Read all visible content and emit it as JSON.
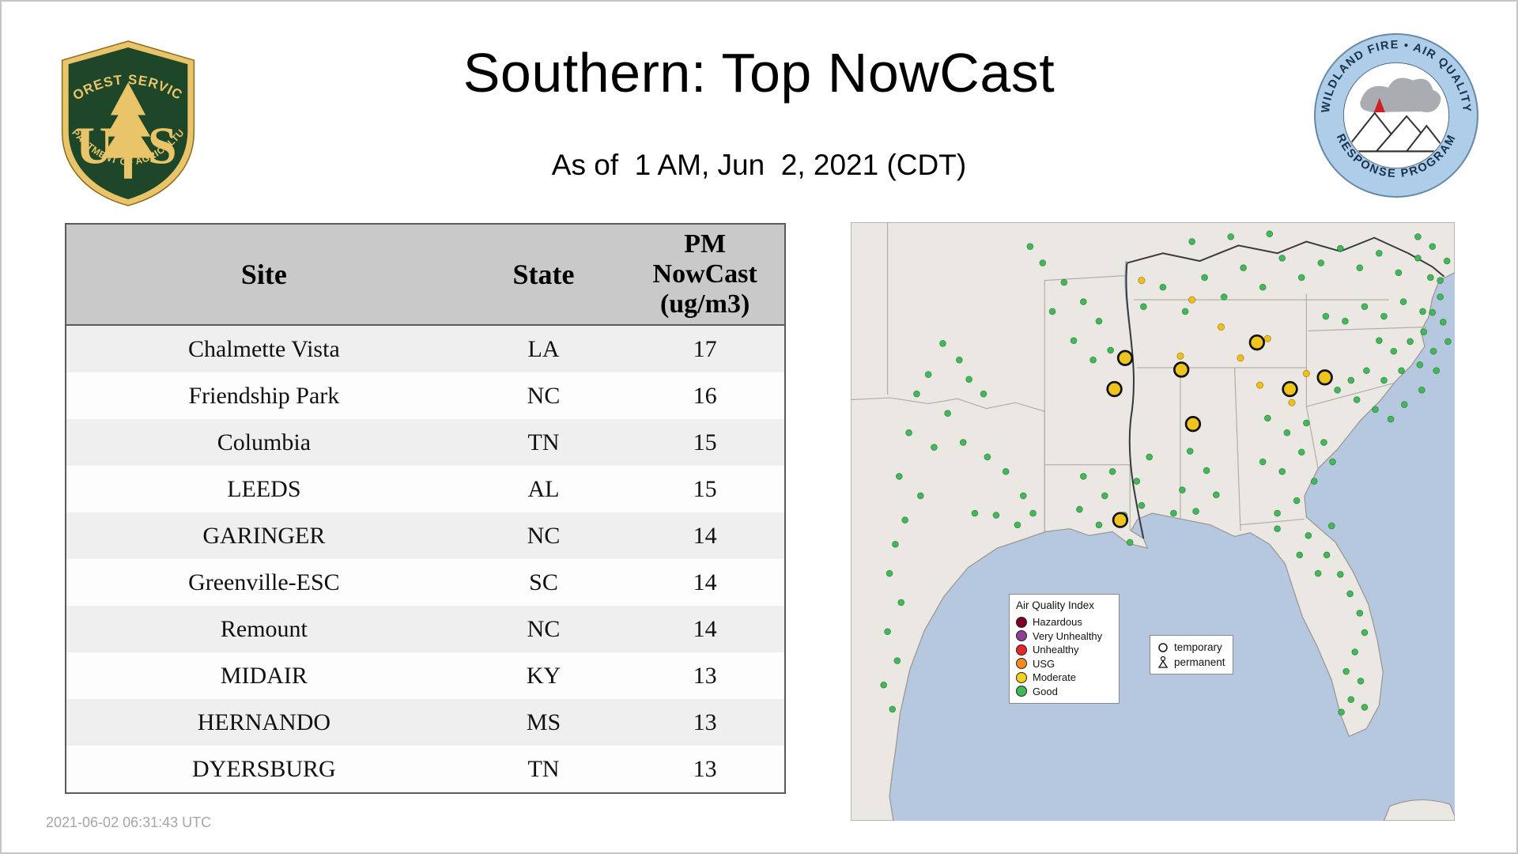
{
  "page": {
    "title": "Southern: Top NowCast",
    "subtitle": "As of  1 AM, Jun  2, 2021 (CDT)",
    "timestamp_utc": "2021-06-02 06:31:43 UTC"
  },
  "logos": {
    "forest_service": {
      "arc_top": "FOREST SERVICE",
      "monogram_left": "U",
      "monogram_right": "S",
      "arc_bottom": "DEPARTMENT OF AGRICULTURE"
    },
    "air_quality_program": {
      "arc_top": "WILDLAND FIRE • AIR QUALITY",
      "arc_bottom": "RESPONSE PROGRAM"
    }
  },
  "table": {
    "header": {
      "site": "Site",
      "state": "State",
      "pm": "PM\nNowCast\n(ug/m3)"
    },
    "rows": [
      {
        "site": "Chalmette Vista",
        "state": "LA",
        "value": "17"
      },
      {
        "site": "Friendship Park",
        "state": "NC",
        "value": "16"
      },
      {
        "site": "Columbia",
        "state": "TN",
        "value": "15"
      },
      {
        "site": "LEEDS",
        "state": "AL",
        "value": "15"
      },
      {
        "site": "GARINGER",
        "state": "NC",
        "value": "14"
      },
      {
        "site": "Greenville-ESC",
        "state": "SC",
        "value": "14"
      },
      {
        "site": "Remount",
        "state": "NC",
        "value": "14"
      },
      {
        "site": "MIDAIR",
        "state": "KY",
        "value": "13"
      },
      {
        "site": "HERNANDO",
        "state": "MS",
        "value": "13"
      },
      {
        "site": "DYERSBURG",
        "state": "TN",
        "value": "13"
      }
    ]
  },
  "map": {
    "legend": {
      "title": "Air Quality Index",
      "items": [
        {
          "label": "Hazardous",
          "color": "#7e0023"
        },
        {
          "label": "Very Unhealthy",
          "color": "#8f3f97"
        },
        {
          "label": "Unhealthy",
          "color": "#e4272c"
        },
        {
          "label": "USG",
          "color": "#f68a1f"
        },
        {
          "label": "Moderate",
          "color": "#f2d21f"
        },
        {
          "label": "Good",
          "color": "#42b958"
        }
      ]
    },
    "marker_legend": {
      "temporary": "temporary",
      "permanent": "permanent"
    },
    "colors": {
      "good_dot": "#42b958",
      "moderate_dot": "#f0c018",
      "top_site_fill": "#eec41d",
      "top_site_stroke": "#111111",
      "water": "#b5c8e0",
      "land": "#ebe8e3"
    },
    "markers": {
      "good": [
        [
          95,
          125
        ],
        [
          112,
          142
        ],
        [
          80,
          157
        ],
        [
          68,
          177
        ],
        [
          122,
          162
        ],
        [
          137,
          177
        ],
        [
          100,
          197
        ],
        [
          60,
          217
        ],
        [
          86,
          232
        ],
        [
          116,
          227
        ],
        [
          141,
          242
        ],
        [
          160,
          257
        ],
        [
          50,
          262
        ],
        [
          72,
          282
        ],
        [
          56,
          307
        ],
        [
          46,
          332
        ],
        [
          40,
          362
        ],
        [
          52,
          392
        ],
        [
          38,
          422
        ],
        [
          48,
          452
        ],
        [
          34,
          477
        ],
        [
          43,
          502
        ],
        [
          150,
          302
        ],
        [
          172,
          312
        ],
        [
          188,
          300
        ],
        [
          178,
          282
        ],
        [
          128,
          300
        ],
        [
          198,
          42
        ],
        [
          220,
          62
        ],
        [
          240,
          82
        ],
        [
          256,
          102
        ],
        [
          230,
          122
        ],
        [
          208,
          92
        ],
        [
          268,
          132
        ],
        [
          250,
          142
        ],
        [
          185,
          25
        ],
        [
          240,
          262
        ],
        [
          262,
          282
        ],
        [
          282,
          302
        ],
        [
          300,
          292
        ],
        [
          256,
          312
        ],
        [
          236,
          296
        ],
        [
          270,
          257
        ],
        [
          295,
          267
        ],
        [
          308,
          242
        ],
        [
          288,
          330
        ],
        [
          302,
          87
        ],
        [
          322,
          67
        ],
        [
          345,
          92
        ],
        [
          365,
          57
        ],
        [
          385,
          77
        ],
        [
          405,
          47
        ],
        [
          425,
          67
        ],
        [
          445,
          37
        ],
        [
          465,
          57
        ],
        [
          485,
          42
        ],
        [
          505,
          27
        ],
        [
          525,
          47
        ],
        [
          545,
          32
        ],
        [
          565,
          52
        ],
        [
          585,
          37
        ],
        [
          598,
          57
        ],
        [
          608,
          77
        ],
        [
          590,
          92
        ],
        [
          570,
          82
        ],
        [
          550,
          97
        ],
        [
          530,
          87
        ],
        [
          510,
          102
        ],
        [
          490,
          97
        ],
        [
          352,
          20
        ],
        [
          392,
          15
        ],
        [
          432,
          12
        ],
        [
          430,
          202
        ],
        [
          450,
          217
        ],
        [
          465,
          237
        ],
        [
          445,
          257
        ],
        [
          425,
          247
        ],
        [
          470,
          207
        ],
        [
          488,
          227
        ],
        [
          497,
          247
        ],
        [
          478,
          267
        ],
        [
          460,
          287
        ],
        [
          440,
          300
        ],
        [
          545,
          122
        ],
        [
          560,
          133
        ],
        [
          577,
          123
        ],
        [
          591,
          113
        ],
        [
          601,
          133
        ],
        [
          587,
          147
        ],
        [
          568,
          153
        ],
        [
          550,
          163
        ],
        [
          532,
          153
        ],
        [
          516,
          163
        ],
        [
          502,
          173
        ],
        [
          522,
          183
        ],
        [
          541,
          193
        ],
        [
          557,
          203
        ],
        [
          571,
          188
        ],
        [
          589,
          173
        ],
        [
          604,
          153
        ],
        [
          611,
          103
        ],
        [
          600,
          93
        ],
        [
          616,
          123
        ],
        [
          608,
          60
        ],
        [
          615,
          40
        ],
        [
          600,
          25
        ],
        [
          585,
          15
        ],
        [
          350,
          236
        ],
        [
          367,
          256
        ],
        [
          342,
          276
        ],
        [
          333,
          300
        ],
        [
          356,
          298
        ],
        [
          377,
          281
        ],
        [
          472,
          323
        ],
        [
          491,
          343
        ],
        [
          505,
          363
        ],
        [
          515,
          383
        ],
        [
          525,
          403
        ],
        [
          530,
          423
        ],
        [
          520,
          443
        ],
        [
          511,
          463
        ],
        [
          526,
          473
        ],
        [
          516,
          492
        ],
        [
          506,
          505
        ],
        [
          530,
          500
        ],
        [
          482,
          362
        ],
        [
          463,
          343
        ],
        [
          496,
          313
        ],
        [
          440,
          316
        ]
      ],
      "moderate": [
        [
          352,
          80
        ],
        [
          382,
          108
        ],
        [
          402,
          140
        ],
        [
          422,
          168
        ],
        [
          455,
          186
        ],
        [
          340,
          138
        ],
        [
          470,
          156
        ],
        [
          430,
          120
        ],
        [
          300,
          60
        ]
      ],
      "top_sites": [
        [
          419,
          124
        ],
        [
          283,
          140
        ],
        [
          272,
          172
        ],
        [
          341,
          152
        ],
        [
          353,
          208
        ],
        [
          453,
          172
        ],
        [
          489,
          160
        ],
        [
          278,
          307
        ]
      ]
    }
  }
}
